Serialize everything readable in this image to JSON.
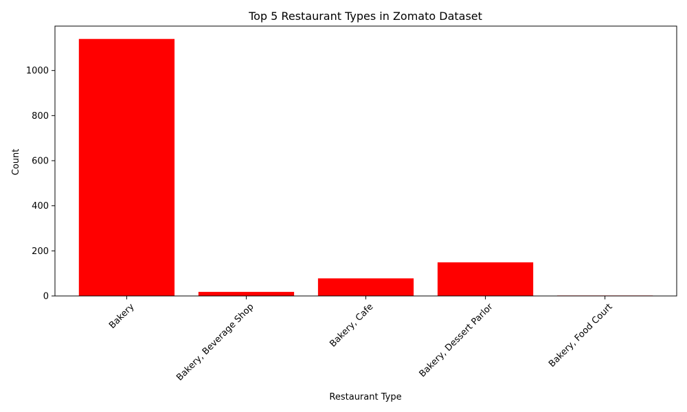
{
  "chart_data": {
    "type": "bar",
    "title": "Top 5 Restaurant Types in Zomato Dataset",
    "xlabel": "Restaurant Type",
    "ylabel": "Count",
    "categories": [
      "Bakery",
      "Bakery, Beverage Shop",
      "Bakery, Cafe",
      "Bakery, Dessert Parlor",
      "Bakery, Food Court"
    ],
    "values": [
      1140,
      18,
      78,
      149,
      2
    ],
    "ylim": [
      0,
      1197
    ],
    "yticks": [
      0,
      200,
      400,
      600,
      800,
      1000
    ],
    "grid": false,
    "legend": "none",
    "x_tick_rotation": 45
  },
  "colors": {
    "bar": "#ff0000",
    "axis": "#000000",
    "background": "#ffffff"
  }
}
